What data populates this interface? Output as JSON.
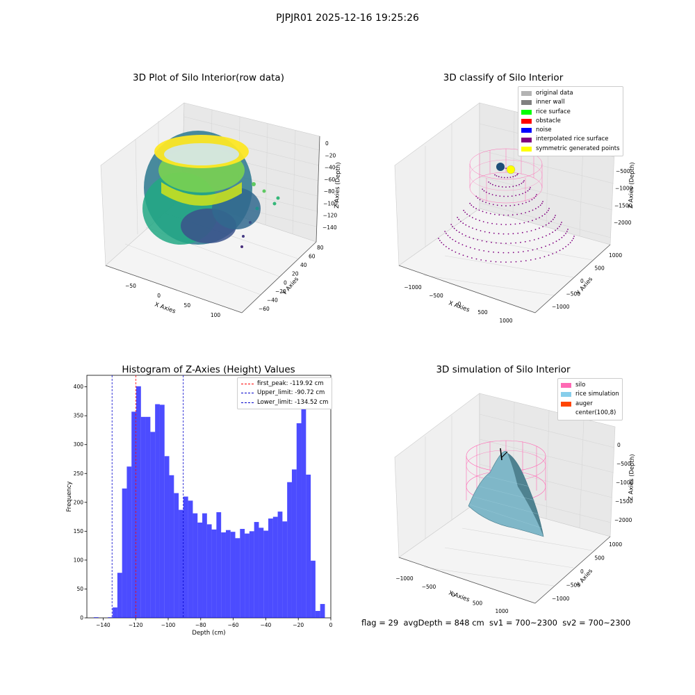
{
  "figure": {
    "suptitle": "PJPJR01 2025-12-16 19:25:26",
    "footer": "flag = 29  avgDepth = 848 cm  sv1 = 700~2300  sv2 = 700~2300"
  },
  "chart_data": [
    {
      "type": "scatter",
      "projection": "3d",
      "title": "3D Plot of Silo Interior(row data)",
      "xlabel": "X Axies",
      "ylabel": "Y Axies",
      "zlabel": "Z Axies (Depth)",
      "xticks": [
        "−50",
        "0",
        "50",
        "100"
      ],
      "yticks": [
        "−60",
        "−40",
        "−20",
        "0",
        "20",
        "40",
        "60",
        "80"
      ],
      "zticks": [
        "0",
        "−20",
        "−40",
        "−60",
        "−80",
        "−100",
        "−120",
        "−140"
      ],
      "colormap": "viridis",
      "grid": true
    },
    {
      "type": "scatter",
      "projection": "3d",
      "title": "3D classify of Silo Interior",
      "xlabel": "X Axies",
      "ylabel": "Y Axies",
      "zlabel": "Z Axies (Depth)",
      "xticks": [
        "−1000",
        "−500",
        "0",
        "500",
        "1000"
      ],
      "yticks": [
        "−1000",
        "−500",
        "0",
        "500",
        "1000"
      ],
      "zticks": [
        "−500",
        "−1000",
        "−1500",
        "−2000"
      ],
      "legend_position": "top-right",
      "legend": [
        {
          "label": "original data",
          "color": "#b3b3b3"
        },
        {
          "label": "inner wall",
          "color": "#808080"
        },
        {
          "label": "rice surface",
          "color": "#00ff00"
        },
        {
          "label": "obstacle",
          "color": "#ff0000"
        },
        {
          "label": "noise",
          "color": "#0000ff"
        },
        {
          "label": "interpolated rice surface",
          "color": "#800080"
        },
        {
          "label": "symmetric generated points",
          "color": "#ffff00"
        }
      ],
      "grid": true
    },
    {
      "type": "bar",
      "title": "Histogram of Z-Axies (Height) Values",
      "xlabel": "Depth (cm)",
      "ylabel": "Frequency",
      "xlim": [
        -150,
        0
      ],
      "ylim": [
        0,
        420
      ],
      "xticks": [
        -140,
        -120,
        -100,
        -80,
        -60,
        -40,
        -20,
        0
      ],
      "xtick_labels": [
        "−140",
        "−120",
        "−100",
        "−80",
        "−60",
        "−40",
        "−20",
        "0"
      ],
      "yticks": [
        0,
        50,
        100,
        150,
        200,
        250,
        300,
        350,
        400
      ],
      "bar_color": "#0000ff",
      "bin_start": -145.75,
      "bin_width": 2.9,
      "values": [
        1,
        0,
        0,
        1,
        18,
        78,
        224,
        262,
        357,
        401,
        348,
        348,
        322,
        370,
        369,
        280,
        247,
        216,
        187,
        210,
        203,
        181,
        165,
        181,
        162,
        153,
        183,
        148,
        152,
        149,
        138,
        154,
        146,
        150,
        166,
        156,
        151,
        172,
        175,
        184,
        167,
        235,
        257,
        337,
        397,
        248,
        99,
        12,
        24
      ],
      "vlines": [
        {
          "label": "first_peak: -119.92 cm",
          "x": -119.92,
          "color": "#ff0000"
        },
        {
          "label": "Upper_limit: -90.72 cm",
          "x": -90.72,
          "color": "#0000cc"
        },
        {
          "label": "Lower_limit: -134.52 cm",
          "x": -134.52,
          "color": "#0000cc"
        }
      ],
      "legend_position": "top-right",
      "grid": false
    },
    {
      "type": "surface",
      "projection": "3d",
      "title": "3D simulation of Silo Interior",
      "xlabel": "X Axies",
      "ylabel": "Y Axies",
      "zlabel": "Z Axies (Depth)",
      "xticks": [
        "−1000",
        "−500",
        "0",
        "500",
        "1000"
      ],
      "yticks": [
        "−1000",
        "−500",
        "0",
        "500",
        "1000"
      ],
      "zticks": [
        "0",
        "−500",
        "−1000",
        "−1500",
        "−2000"
      ],
      "legend_position": "top-right",
      "legend": [
        {
          "label": "silo",
          "color": "#ff69b4"
        },
        {
          "label": "rice simulation",
          "color": "#87ceeb"
        },
        {
          "label": "auger",
          "color": "#ff4500"
        },
        {
          "label": "center(100,8)",
          "color": ""
        }
      ],
      "grid": true
    }
  ]
}
